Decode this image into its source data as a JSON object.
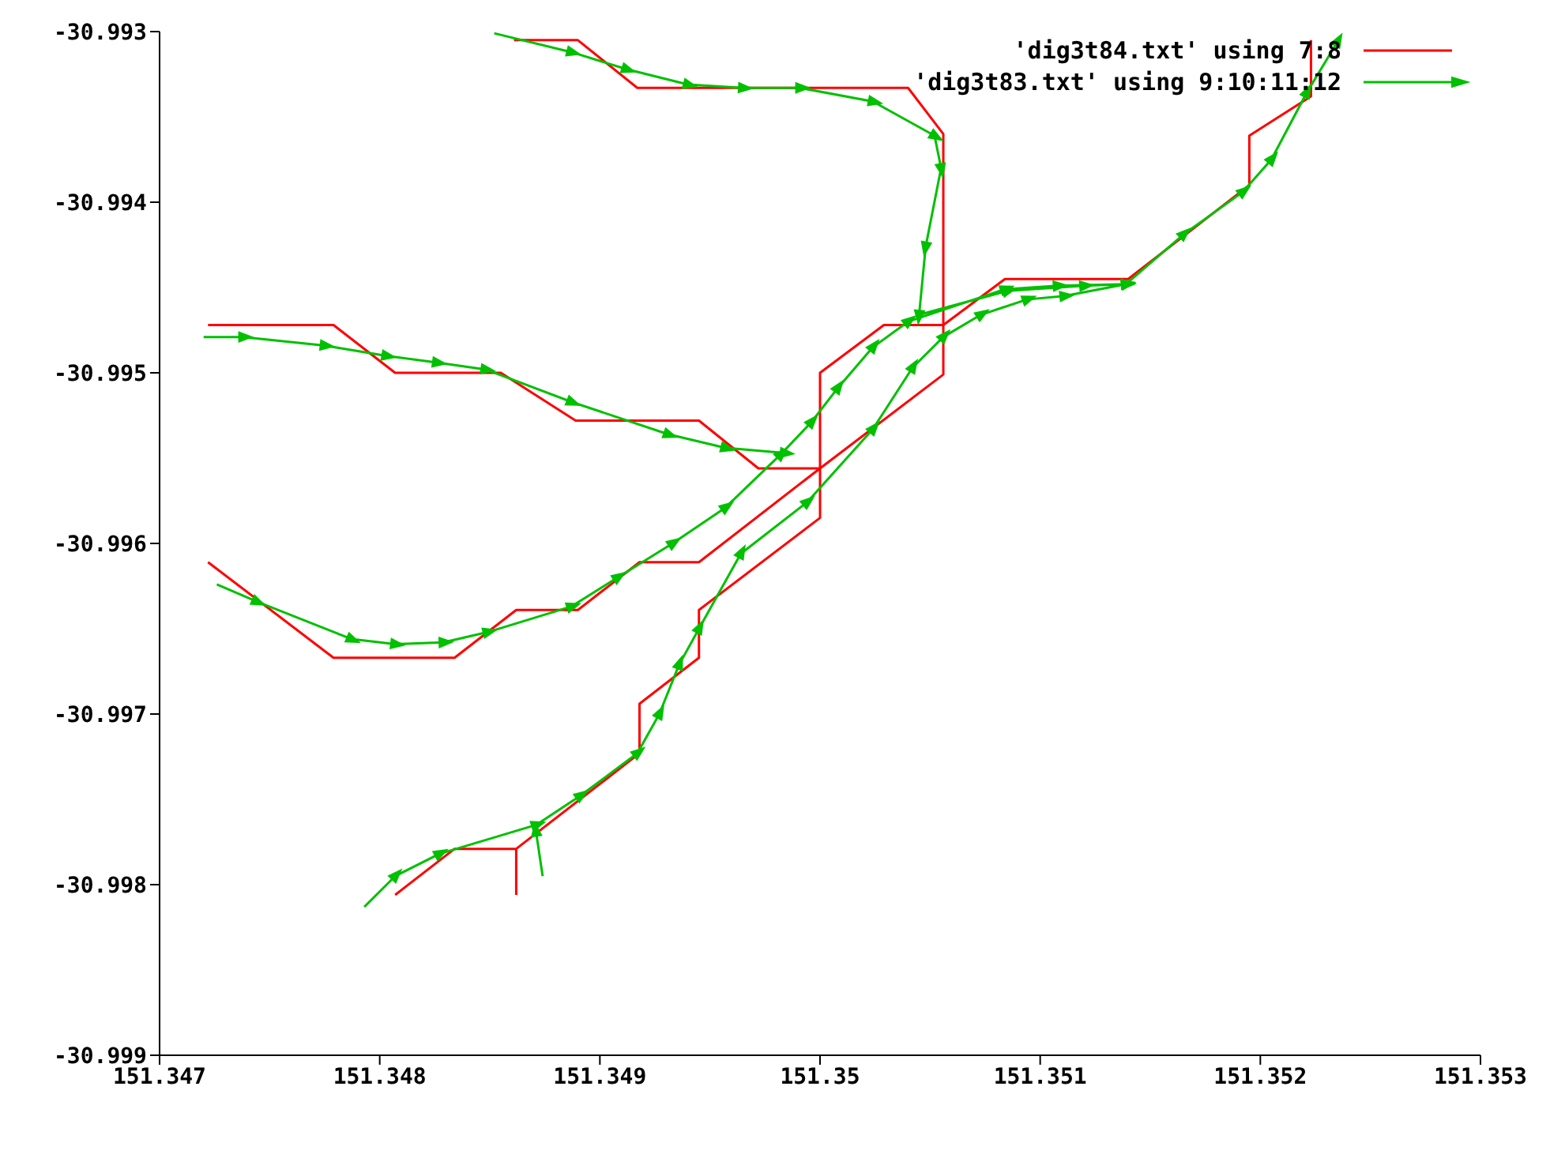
{
  "chart_data": {
    "type": "line",
    "xlim": [
      151.347,
      151.353
    ],
    "xticks": [
      151.347,
      151.348,
      151.349,
      151.35,
      151.351,
      151.352,
      151.353
    ],
    "ylim": [
      -30.999,
      -30.993
    ],
    "yticks": [
      -30.999,
      -30.998,
      -30.997,
      -30.996,
      -30.995,
      -30.994,
      -30.993
    ],
    "grid": false,
    "legend": "top right",
    "series": [
      {
        "name": "'dig3t84.txt' using 7:8",
        "color": "#ff0000",
        "marker": "none",
        "x": [
          151.34861,
          151.3489,
          151.34917,
          151.3504,
          151.35056,
          151.35056,
          151.35,
          151.34945,
          151.34918,
          151.3489,
          151.34862,
          151.34834,
          151.34779,
          151.34722,
          null,
          151.34722,
          151.34779,
          151.34807,
          151.34855,
          151.34889,
          151.34945,
          151.34972,
          151.35,
          null,
          151.35223,
          151.35223,
          151.35195,
          151.35195,
          151.3514,
          151.35084,
          151.35056,
          151.35029,
          151.35,
          151.35,
          151.34945,
          151.34945,
          151.34918,
          151.34918,
          151.34862,
          151.34834,
          151.34807,
          null,
          151.34862,
          151.34862
        ],
        "values": [
          -30.99305,
          -30.99305,
          -30.99333,
          -30.99333,
          -30.9936,
          -30.99501,
          -30.99556,
          -30.99611,
          -30.99611,
          -30.99639,
          -30.99639,
          -30.99667,
          -30.99667,
          -30.99611,
          null,
          -30.99472,
          -30.99472,
          -30.995,
          -30.995,
          -30.99528,
          -30.99528,
          -30.99556,
          -30.99556,
          null,
          -30.99305,
          -30.99338,
          -30.99361,
          -30.9939,
          -30.99445,
          -30.99445,
          -30.99472,
          -30.99472,
          -30.995,
          -30.99585,
          -30.99639,
          -30.99667,
          -30.99694,
          -30.99723,
          -30.99779,
          -30.99779,
          -30.99806,
          null,
          -30.99779,
          -30.99806
        ]
      },
      {
        "name": "'dig3t83.txt' using 9:10:11:12",
        "color": "#00c000",
        "marker": "triangle",
        "x": [
          151.34852,
          151.34887,
          151.34912,
          151.3494,
          151.34965,
          151.34991,
          151.35024,
          151.35052,
          151.35055,
          151.35048,
          151.35045,
          151.35085,
          151.3512,
          151.35139,
          151.35165,
          151.35192,
          151.35205,
          151.35221,
          151.35235,
          null,
          151.3472,
          151.34738,
          151.34775,
          151.34803,
          151.34826,
          151.34848,
          151.34887,
          151.34931,
          151.34957,
          151.34984,
          null,
          151.34726,
          151.34744,
          151.34787,
          151.34807,
          151.34829,
          151.34849,
          151.34887,
          151.34908,
          151.34933,
          151.34957,
          151.34982,
          151.34996,
          151.35008,
          151.35024,
          151.3504,
          151.35084,
          151.35108,
          151.35139,
          null,
          151.34793,
          151.34807,
          151.34827,
          151.34871,
          151.34891,
          151.34917,
          151.34927,
          151.34936,
          151.34945,
          151.34964,
          151.34994,
          151.35024,
          151.35042,
          151.35056,
          151.35073,
          151.35094,
          151.35111,
          151.35139,
          null,
          151.34874,
          151.34871
        ],
        "values": [
          -30.99301,
          -30.99312,
          -30.99322,
          -30.99331,
          -30.99333,
          -30.99333,
          -30.99341,
          -30.99361,
          -30.9938,
          -30.99426,
          -30.99466,
          -30.99452,
          -30.99449,
          -30.99448,
          -30.99419,
          -30.99394,
          -30.99375,
          -30.99336,
          -30.99306,
          null,
          -30.99479,
          -30.99479,
          -30.99484,
          -30.9949,
          -30.99494,
          -30.99498,
          -30.99517,
          -30.99536,
          -30.99544,
          -30.99547,
          null,
          -30.99624,
          -30.99634,
          -30.99656,
          -30.99659,
          -30.99658,
          -30.99652,
          -30.99637,
          -30.9962,
          -30.996,
          -30.99579,
          -30.99548,
          -30.99529,
          -30.99509,
          -30.99485,
          -30.9947,
          -30.99451,
          -30.99449,
          -30.99448,
          null,
          -30.99813,
          -30.99795,
          -30.99782,
          -30.99765,
          -30.99748,
          -30.99723,
          -30.997,
          -30.99671,
          -30.9965,
          -30.99606,
          -30.99576,
          -30.99533,
          -30.99497,
          -30.99479,
          -30.99466,
          -30.99457,
          -30.99455,
          -30.99448,
          null,
          -30.99795,
          -30.99769
        ]
      }
    ]
  }
}
